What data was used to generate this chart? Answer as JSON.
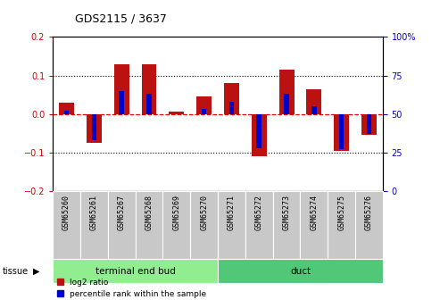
{
  "title": "GDS2115 / 3637",
  "samples": [
    "GSM65260",
    "GSM65261",
    "GSM65267",
    "GSM65268",
    "GSM65269",
    "GSM65270",
    "GSM65271",
    "GSM65272",
    "GSM65273",
    "GSM65274",
    "GSM65275",
    "GSM65276"
  ],
  "log2_ratio": [
    0.03,
    -0.075,
    0.13,
    0.13,
    0.005,
    0.045,
    0.08,
    -0.11,
    0.115,
    0.063,
    -0.095,
    -0.055
  ],
  "percentile_rank_pct": [
    52,
    33,
    65,
    63,
    50,
    53,
    58,
    28,
    63,
    55,
    27,
    37
  ],
  "groups": [
    {
      "label": "terminal end bud",
      "start": 0,
      "end": 6,
      "color": "#90EE90"
    },
    {
      "label": "duct",
      "start": 6,
      "end": 12,
      "color": "#50C878"
    }
  ],
  "tissue_label": "tissue",
  "ylim": [
    -0.2,
    0.2
  ],
  "y2lim": [
    0,
    100
  ],
  "yticks_left": [
    -0.2,
    -0.1,
    0.0,
    0.1,
    0.2
  ],
  "yticks_right": [
    0,
    25,
    50,
    75,
    100
  ],
  "bar_width": 0.55,
  "blue_bar_width": 0.18,
  "red_color": "#BB1111",
  "blue_color": "#0000CC",
  "dashed_red": "#EE0000",
  "dotted_color": "black",
  "left_tick_color": "#CC0000",
  "right_tick_color": "#0000CC",
  "legend_items": [
    "log2 ratio",
    "percentile rank within the sample"
  ],
  "sample_box_color": "#C8C8C8",
  "sample_box_edge": "#AAAAAA"
}
